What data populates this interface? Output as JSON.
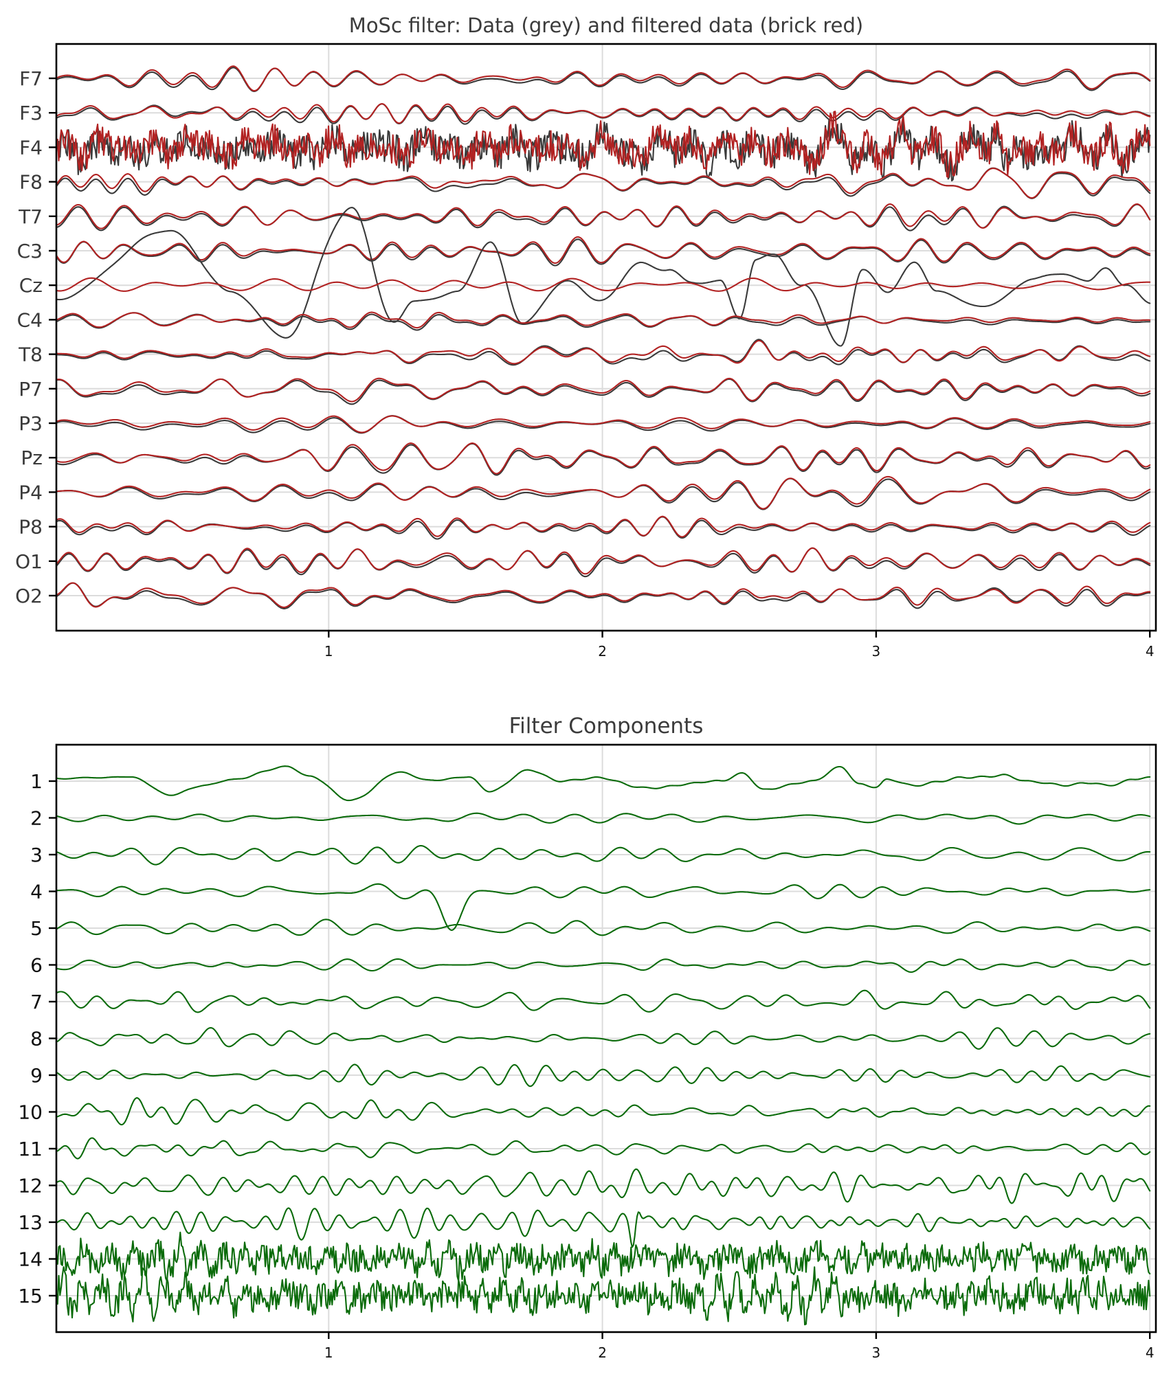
{
  "chart_data": [
    {
      "type": "line",
      "title": "MoSc filter: Data (grey) and filtered data (brick red)",
      "xlabel": "",
      "ylabel": "",
      "xlim": [
        0.0,
        4.02
      ],
      "x_ticks": [
        1,
        2,
        3,
        4
      ],
      "x_tick_labels": [
        "1",
        "2",
        "3",
        "4"
      ],
      "grid": true,
      "legend": "none (described in title)",
      "channels": [
        "F7",
        "F3",
        "F4",
        "F8",
        "T7",
        "C3",
        "Cz",
        "C4",
        "T8",
        "P7",
        "P3",
        "Pz",
        "P4",
        "P8",
        "O1",
        "O2"
      ],
      "series": [
        {
          "name": "Data",
          "color": "#3a3a3a"
        },
        {
          "name": "Filtered data",
          "color": "#b22222"
        }
      ],
      "notes": "Stacked EEG traces, one per channel; grey and brick red nearly overlap except channel Cz where grey raw data shows large slow excursions",
      "cz_raw_landmarks": {
        "x": [
          0.0,
          0.42,
          0.64,
          0.84,
          1.08,
          1.24,
          1.31,
          1.47,
          1.59,
          1.71,
          1.87,
          1.98,
          2.15,
          2.24,
          2.32,
          2.43,
          2.5,
          2.56,
          2.63,
          2.73,
          2.87,
          2.95,
          3.04,
          3.14,
          3.22,
          3.39,
          3.57,
          3.68,
          3.77,
          3.84,
          3.91,
          4.0
        ],
        "y": [
          -20,
          80,
          -8,
          -75,
          113,
          -52,
          -25,
          -10,
          62,
          -55,
          8,
          -23,
          32,
          22,
          5,
          5,
          -47,
          38,
          42,
          2,
          -85,
          20,
          -8,
          32,
          -8,
          -32,
          7,
          20,
          2,
          29,
          -2,
          -25
        ]
      },
      "notable_events": [
        {
          "channel": "F4",
          "x": 3.45,
          "description": "sharp spike up then down"
        },
        {
          "channel": "O2",
          "x": 0.3,
          "description": "large biphasic oscillation"
        },
        {
          "channel": "T8",
          "x": 2.87,
          "description": "dip"
        }
      ]
    },
    {
      "type": "line",
      "title": "Filter Components",
      "xlabel": "",
      "ylabel": "",
      "xlim": [
        0.0,
        4.02
      ],
      "x_ticks": [
        1,
        2,
        3,
        4
      ],
      "x_tick_labels": [
        "1",
        "2",
        "3",
        "4"
      ],
      "grid": true,
      "channels": [
        "1",
        "2",
        "3",
        "4",
        "5",
        "6",
        "7",
        "8",
        "9",
        "10",
        "11",
        "12",
        "13",
        "14",
        "15"
      ],
      "series": [
        {
          "name": "Components",
          "color": "#0b6b0b"
        }
      ],
      "component1_landmarks": {
        "x": [
          0.0,
          0.28,
          0.42,
          0.55,
          0.64,
          0.85,
          0.93,
          1.08,
          1.26,
          1.37,
          1.51,
          1.59,
          1.73,
          1.85,
          1.98,
          2.16,
          2.43,
          2.51,
          2.59,
          2.77,
          2.87,
          2.94,
          3.0,
          3.04,
          3.14,
          3.32,
          3.46,
          3.59,
          3.7,
          3.79,
          3.85,
          3.94,
          4.0
        ],
        "y": [
          4,
          6,
          -20,
          -6,
          2,
          21,
          7,
          -28,
          13,
          1,
          6,
          -15,
          16,
          0,
          5,
          -10,
          0,
          11,
          -12,
          0,
          21,
          -5,
          -8,
          2,
          -6,
          5,
          8,
          -2,
          -6,
          -2,
          -7,
          3,
          5
        ]
      },
      "notable_events": [
        {
          "channel": "4",
          "x": 1.45,
          "description": "component 4 crosses downward into component 5 region"
        },
        {
          "channel": "13",
          "x": 2.12,
          "description": "large sharp transient"
        }
      ]
    }
  ],
  "figure": {
    "top_panel": {
      "title": "MoSc filter: Data (grey) and filtered data (brick red)",
      "y_labels": [
        "F7",
        "F3",
        "F4",
        "F8",
        "T7",
        "C3",
        "Cz",
        "C4",
        "T8",
        "P7",
        "P3",
        "Pz",
        "P4",
        "P8",
        "O1",
        "O2"
      ],
      "x_tick_labels": [
        "1",
        "2",
        "3",
        "4"
      ],
      "raw_color": "#3a3a3a",
      "filtered_color": "#b22222"
    },
    "bottom_panel": {
      "title": "Filter Components",
      "y_labels": [
        "1",
        "2",
        "3",
        "4",
        "5",
        "6",
        "7",
        "8",
        "9",
        "10",
        "11",
        "12",
        "13",
        "14",
        "15"
      ],
      "x_tick_labels": [
        "1",
        "2",
        "3",
        "4"
      ],
      "trace_color": "#0b6b0b"
    }
  }
}
